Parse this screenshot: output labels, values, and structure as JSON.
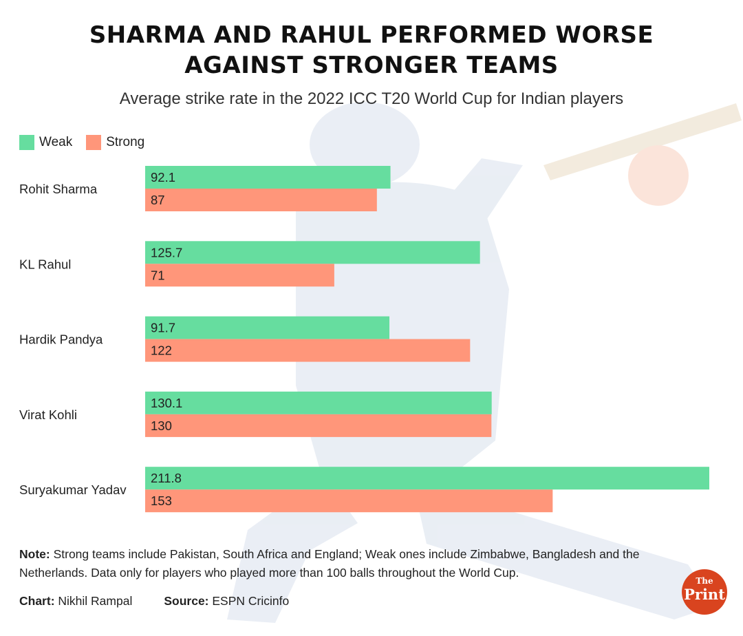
{
  "title_line1": "SHARMA AND RAHUL PERFORMED WORSE",
  "title_line2": "AGAINST STRONGER TEAMS",
  "subtitle": "Average strike rate in the 2022 ICC T20 World Cup for Indian players",
  "colors": {
    "weak": "#66dd9f",
    "strong": "#ff967a"
  },
  "chart_data": {
    "type": "bar",
    "orientation": "horizontal",
    "title": "SHARMA AND RAHUL PERFORMED WORSE AGAINST STRONGER TEAMS",
    "subtitle": "Average strike rate in the 2022 ICC T20 World Cup for Indian players",
    "categories": [
      "Rohit Sharma",
      "KL Rahul",
      "Hardik Pandya",
      "Virat Kohli",
      "Suryakumar Yadav"
    ],
    "series": [
      {
        "name": "Weak",
        "values": [
          92.1,
          125.7,
          91.7,
          130.1,
          211.8
        ],
        "labels": [
          "92.1",
          "125.7",
          "91.7",
          "130.1",
          "211.8"
        ]
      },
      {
        "name": "Strong",
        "values": [
          87,
          71,
          122,
          130,
          153
        ],
        "labels": [
          "87",
          "71",
          "122",
          "130",
          "153"
        ]
      }
    ],
    "xlim": [
      0,
      211.8
    ],
    "legend": "top-left",
    "grid": false
  },
  "note": {
    "label": "Note:",
    "text": " Strong teams include Pakistan, South Africa and England; Weak ones include Zimbabwe, Bangladesh and the Netherlands. Data only for players who played more than 100 balls throughout the World Cup."
  },
  "credits": {
    "chart_label": "Chart:",
    "chart_value": " Nikhil Rampal",
    "source_label": "Source:",
    "source_value": " ESPN Cricinfo"
  },
  "logo": {
    "the": "The",
    "print": "Print"
  }
}
